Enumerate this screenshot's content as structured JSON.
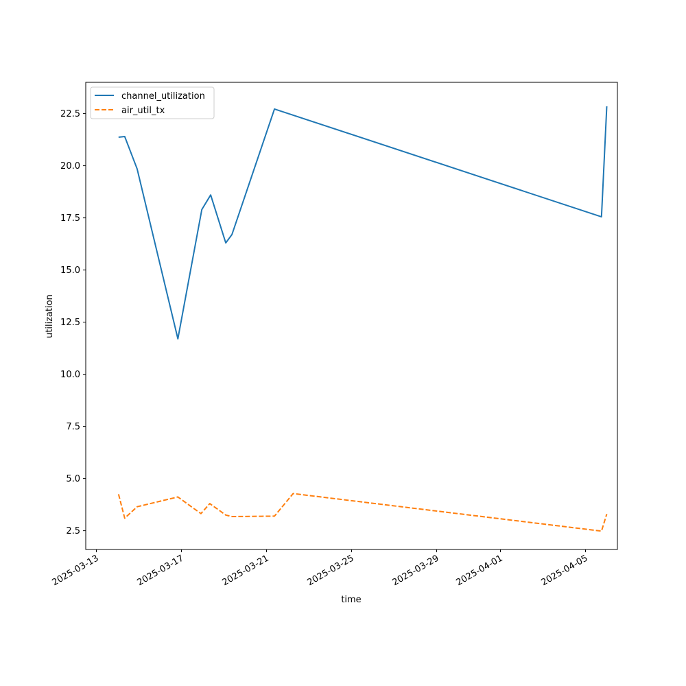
{
  "chart_data": {
    "type": "line",
    "title": "",
    "xlabel": "time",
    "ylabel": "utilization",
    "xlim": [
      "2025-03-12T12:00",
      "2025-04-06T12:00"
    ],
    "ylim": [
      1.6,
      24.0
    ],
    "x_ticks": [
      "2025-03-13",
      "2025-03-17",
      "2025-03-21",
      "2025-03-25",
      "2025-03-29",
      "2025-04-01",
      "2025-04-05"
    ],
    "y_ticks": [
      "2.5",
      "5.0",
      "7.5",
      "10.0",
      "12.5",
      "15.0",
      "17.5",
      "20.0",
      "22.5"
    ],
    "grid": false,
    "legend_position": "upper-left",
    "series": [
      {
        "name": "channel_utilization",
        "color": "#1f77b4",
        "style": "solid",
        "points": [
          {
            "x": "2025-03-14T01:00",
            "y": 21.37
          },
          {
            "x": "2025-03-14T08:00",
            "y": 21.4
          },
          {
            "x": "2025-03-14T22:00",
            "y": 19.85
          },
          {
            "x": "2025-03-16T20:00",
            "y": 11.7
          },
          {
            "x": "2025-03-17T23:00",
            "y": 17.9
          },
          {
            "x": "2025-03-18T09:00",
            "y": 18.6
          },
          {
            "x": "2025-03-19T02:00",
            "y": 16.3
          },
          {
            "x": "2025-03-19T09:00",
            "y": 16.7
          },
          {
            "x": "2025-03-21T09:00",
            "y": 22.72
          },
          {
            "x": "2025-04-05T18:00",
            "y": 17.55
          },
          {
            "x": "2025-04-06T00:00",
            "y": 22.85
          }
        ]
      },
      {
        "name": "air_util_tx",
        "color": "#ff7f0e",
        "style": "dashed",
        "points": [
          {
            "x": "2025-03-14T01:00",
            "y": 4.25
          },
          {
            "x": "2025-03-14T08:00",
            "y": 3.1
          },
          {
            "x": "2025-03-14T22:00",
            "y": 3.65
          },
          {
            "x": "2025-03-16T20:00",
            "y": 4.12
          },
          {
            "x": "2025-03-17T22:00",
            "y": 3.32
          },
          {
            "x": "2025-03-18T08:00",
            "y": 3.8
          },
          {
            "x": "2025-03-19T02:00",
            "y": 3.25
          },
          {
            "x": "2025-03-19T09:00",
            "y": 3.18
          },
          {
            "x": "2025-03-21T09:00",
            "y": 3.2
          },
          {
            "x": "2025-03-22T06:00",
            "y": 4.28
          },
          {
            "x": "2025-04-05T18:00",
            "y": 2.48
          },
          {
            "x": "2025-04-06T00:00",
            "y": 3.3
          }
        ]
      }
    ]
  }
}
